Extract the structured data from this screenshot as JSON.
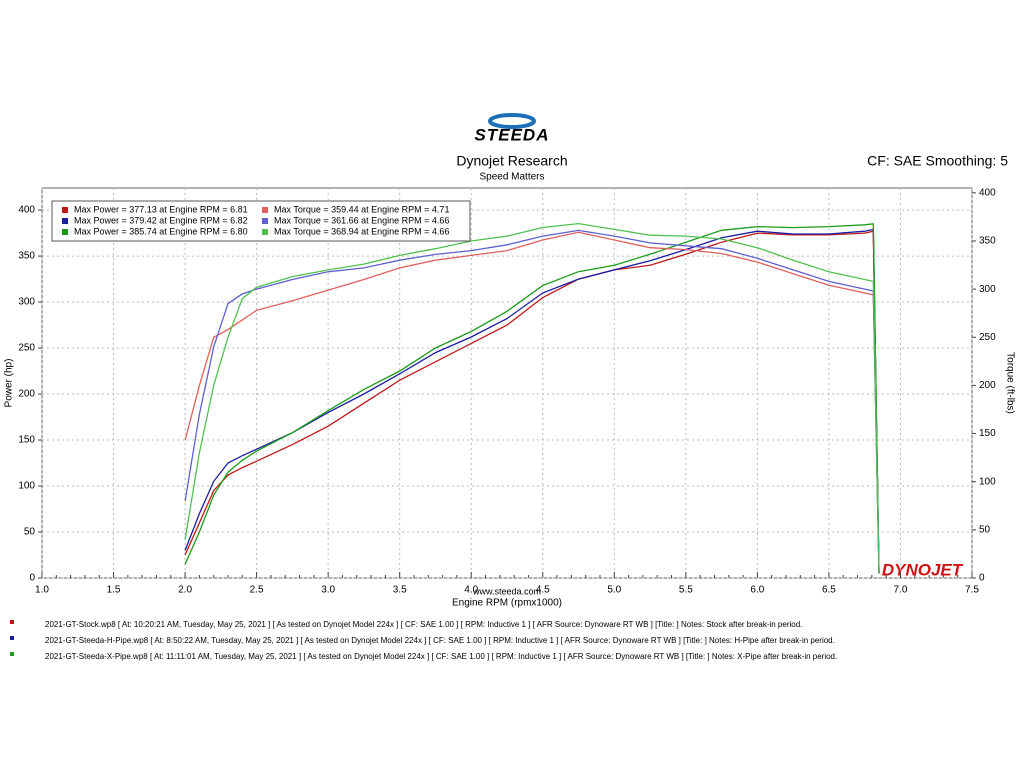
{
  "chart_data": {
    "type": "line",
    "logo_text": "STEEDA",
    "title": "Dynojet Research",
    "subtitle": "Speed Matters",
    "corner_note": "CF: SAE Smoothing: 5",
    "source": "www.steeda.com",
    "watermark": "DYNOJET",
    "x_label": "Engine RPM (rpmx1000)",
    "y_label": "Power (hp)",
    "y2_label": "Torque (ft-lbs)",
    "xlim": [
      1.0,
      7.5
    ],
    "xticks": [
      {
        "value": 1,
        "label": "1.0"
      },
      1.5,
      {
        "value": 2,
        "label": "2.0"
      },
      2.5,
      {
        "value": 3,
        "label": "3.0"
      },
      3.5,
      {
        "value": 4,
        "label": "4.0"
      },
      4.5,
      {
        "value": 5,
        "label": "5.0"
      },
      5.5,
      {
        "value": 6,
        "label": "6.0"
      },
      6.5,
      {
        "value": 7,
        "label": "7.0"
      },
      7.5
    ],
    "ylim": [
      0,
      424
    ],
    "yticks": [
      0,
      50,
      100,
      150,
      200,
      250,
      300,
      350,
      400
    ],
    "y2lim": [
      0,
      405
    ],
    "y2ticks": [
      0,
      50,
      100,
      150,
      200,
      250,
      300,
      350,
      400
    ],
    "grid": true,
    "x": [
      2.0,
      2.1,
      2.2,
      2.3,
      2.4,
      2.5,
      2.75,
      3.0,
      3.25,
      3.5,
      3.75,
      4.0,
      4.25,
      4.5,
      4.75,
      5.0,
      5.25,
      5.5,
      5.75,
      6.0,
      6.25,
      6.5,
      6.75,
      6.81,
      6.85
    ],
    "series": [
      {
        "label": "Max Power = 377.13 at Engine RPM = 6.81",
        "color": "#c01818",
        "values": [
          25,
          60,
          95,
          112,
          120,
          127,
          145,
          165,
          190,
          215,
          235,
          255,
          275,
          305,
          325,
          335,
          340,
          352,
          365,
          375,
          373,
          373,
          375,
          377,
          5
        ]
      },
      {
        "label": "Max Power = 379.42 at Engine RPM = 6.82",
        "color": "#1c1ca0",
        "values": [
          30,
          70,
          105,
          125,
          133,
          140,
          158,
          180,
          200,
          222,
          245,
          262,
          282,
          310,
          325,
          335,
          345,
          357,
          370,
          377,
          374,
          374,
          377,
          379,
          5
        ]
      },
      {
        "label": "Max Power = 385.74 at Engine RPM = 6.80",
        "color": "#1c9c1c",
        "values": [
          15,
          50,
          90,
          115,
          128,
          138,
          158,
          182,
          205,
          225,
          250,
          268,
          290,
          318,
          333,
          340,
          352,
          365,
          378,
          382,
          381,
          382,
          384,
          385,
          5
        ]
      },
      {
        "label": "Max Torque = 359.44 at Engine RPM = 4.71",
        "color": "#e06060",
        "axis": "y2",
        "values": [
          143,
          200,
          250,
          258,
          268,
          278,
          288,
          299,
          310,
          322,
          330,
          335,
          340,
          351,
          359,
          351,
          343,
          341,
          337,
          328,
          316,
          304,
          296,
          294,
          5
        ]
      },
      {
        "label": "Max Torque = 361.66 at Engine RPM = 4.66",
        "color": "#6060d0",
        "axis": "y2",
        "values": [
          80,
          170,
          240,
          285,
          295,
          300,
          310,
          318,
          322,
          330,
          336,
          340,
          346,
          355,
          361,
          355,
          348,
          345,
          342,
          332,
          320,
          308,
          300,
          298,
          5
        ]
      },
      {
        "label": "Max Torque = 368.94 at Engine RPM = 4.66",
        "color": "#50c050",
        "axis": "y2",
        "values": [
          40,
          130,
          200,
          250,
          290,
          302,
          313,
          320,
          326,
          335,
          342,
          350,
          355,
          364,
          368,
          362,
          356,
          355,
          352,
          343,
          330,
          318,
          310,
          308,
          5
        ]
      }
    ],
    "runs": [
      {
        "color": "#c01818",
        "text": "2021-GT-Stock.wp8  [  At:  10:20:21 AM, Tuesday, May 25, 2021  ]  [  As tested on Dynojet Model 224x  ]  [  CF: SAE 1.00  ]  [  RPM: Inductive 1  ]  [  AFR Source:  Dynoware RT WB  ]  [Title:  ]   Notes: Stock after break-in period."
      },
      {
        "color": "#1c1ca0",
        "text": "2021-GT-Steeda-H-Pipe.wp8  [  At:  8:50:22 AM, Tuesday, May 25, 2021  ]  [  As tested on Dynojet Model 224x  ]  [  CF: SAE 1.00  ]  [  RPM: Inductive 1  ]  [  AFR Source:  Dynoware RT WB  ]  [Title:  ]   Notes: H-Pipe after break-in period."
      },
      {
        "color": "#1c9c1c",
        "text": "2021-GT-Steeda-X-Pipe.wp8  [  At:  11:11:01 AM, Tuesday, May 25, 2021  ]  [  As tested on Dynojet Model 224x  ]  [  CF: SAE 1.00  ]  [  RPM: Inductive 1  ]  [  AFR Source:  Dynoware RT WB  ]  [Title:  ]   Notes: X-Pipe after break-in period."
      }
    ]
  }
}
